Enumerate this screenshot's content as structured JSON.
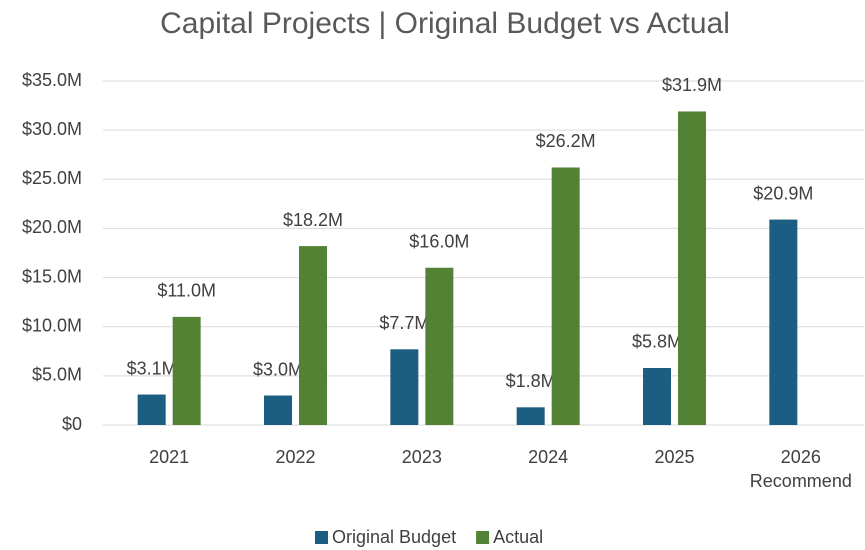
{
  "chart_data": {
    "type": "bar",
    "title": "Capital Projects | Original Budget vs Actual",
    "categories": [
      "2021",
      "2022",
      "2023",
      "2024",
      "2025",
      "2026\nRecommend"
    ],
    "series": [
      {
        "name": "Original Budget",
        "color": "#1b5e82",
        "values": [
          3.1,
          3.0,
          7.7,
          1.8,
          5.8,
          20.9
        ],
        "value_labels": [
          "$3.1M",
          "$3.0M",
          "$7.7M",
          "$1.8M",
          "$5.8M",
          "$20.9M"
        ]
      },
      {
        "name": "Actual",
        "color": "#548235",
        "values": [
          11.0,
          18.2,
          16.0,
          26.2,
          31.9,
          null
        ],
        "value_labels": [
          "$11.0M",
          "$18.2M",
          "$16.0M",
          "$26.2M",
          "$31.9M",
          null
        ]
      }
    ],
    "ylim": [
      0,
      35
    ],
    "yticks": [
      {
        "value": 0,
        "label": "$0"
      },
      {
        "value": 5,
        "label": "$5.0M"
      },
      {
        "value": 10,
        "label": "$10.0M"
      },
      {
        "value": 15,
        "label": "$15.0M"
      },
      {
        "value": 20,
        "label": "$20.0M"
      },
      {
        "value": 25,
        "label": "$25.0M"
      },
      {
        "value": 30,
        "label": "$30.0M"
      },
      {
        "value": 35,
        "label": "$35.0M"
      }
    ],
    "grid": true,
    "legend": "bottom"
  }
}
